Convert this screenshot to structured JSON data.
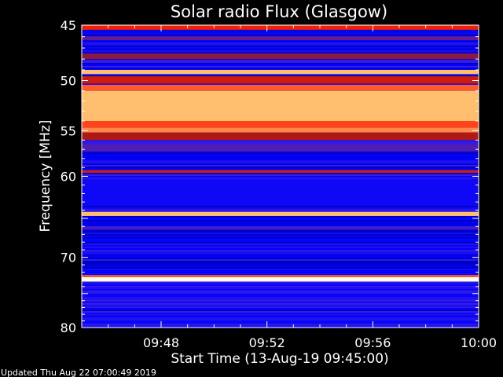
{
  "chart_data": {
    "type": "heatmap",
    "title": "Solar radio Flux (Glasgow)",
    "xlabel": "Start Time (13-Aug-19 09:45:00)",
    "ylabel": "Frequency [MHz]",
    "x_tick_labels": [
      "09:48",
      "09:52",
      "09:56",
      "10:00"
    ],
    "x_tick_values_min": [
      3,
      7,
      11,
      15
    ],
    "x_range_min": [
      0,
      15
    ],
    "y_tick_labels": [
      "45",
      "50",
      "55",
      "60",
      "70",
      "80"
    ],
    "y_tick_values": [
      45,
      50,
      55,
      60,
      70,
      80
    ],
    "y_range": [
      45,
      80
    ],
    "y_scale": "log",
    "y_inverted": true,
    "colormap": [
      "#000080",
      "#0000ff",
      "#3b1fe0",
      "#a01818",
      "#ff2000",
      "#ff6030",
      "#ffff99",
      "#ffffff"
    ],
    "bands": [
      {
        "freq_min": 45.0,
        "freq_max": 45.4,
        "level": 0.55
      },
      {
        "freq_min": 46.0,
        "freq_max": 46.3,
        "level": 0.35
      },
      {
        "freq_min": 47.5,
        "freq_max": 48.0,
        "level": 0.4
      },
      {
        "freq_min": 49.0,
        "freq_max": 49.4,
        "level": 0.8
      },
      {
        "freq_min": 49.6,
        "freq_max": 50.3,
        "level": 0.5
      },
      {
        "freq_min": 50.4,
        "freq_max": 51.0,
        "level": 0.7
      },
      {
        "freq_min": 51.0,
        "freq_max": 54.0,
        "level": 0.8
      },
      {
        "freq_min": 54.0,
        "freq_max": 54.7,
        "level": 0.65
      },
      {
        "freq_min": 54.7,
        "freq_max": 55.2,
        "level": 0.75
      },
      {
        "freq_min": 55.2,
        "freq_max": 56.0,
        "level": 0.45
      },
      {
        "freq_min": 56.5,
        "freq_max": 57.2,
        "level": 0.32
      },
      {
        "freq_min": 59.3,
        "freq_max": 59.6,
        "level": 0.5
      },
      {
        "freq_min": 60.5,
        "freq_max": 63.5,
        "level": 0.18
      },
      {
        "freq_min": 64.2,
        "freq_max": 64.7,
        "level": 0.8
      },
      {
        "freq_min": 66.0,
        "freq_max": 66.4,
        "level": 0.3
      },
      {
        "freq_min": 72.7,
        "freq_max": 73.3,
        "level": 0.97
      },
      {
        "freq_min": 72.4,
        "freq_max": 72.7,
        "level": 0.7
      }
    ],
    "footer": "Updated Thu Aug 22 07:00:49 2019"
  }
}
